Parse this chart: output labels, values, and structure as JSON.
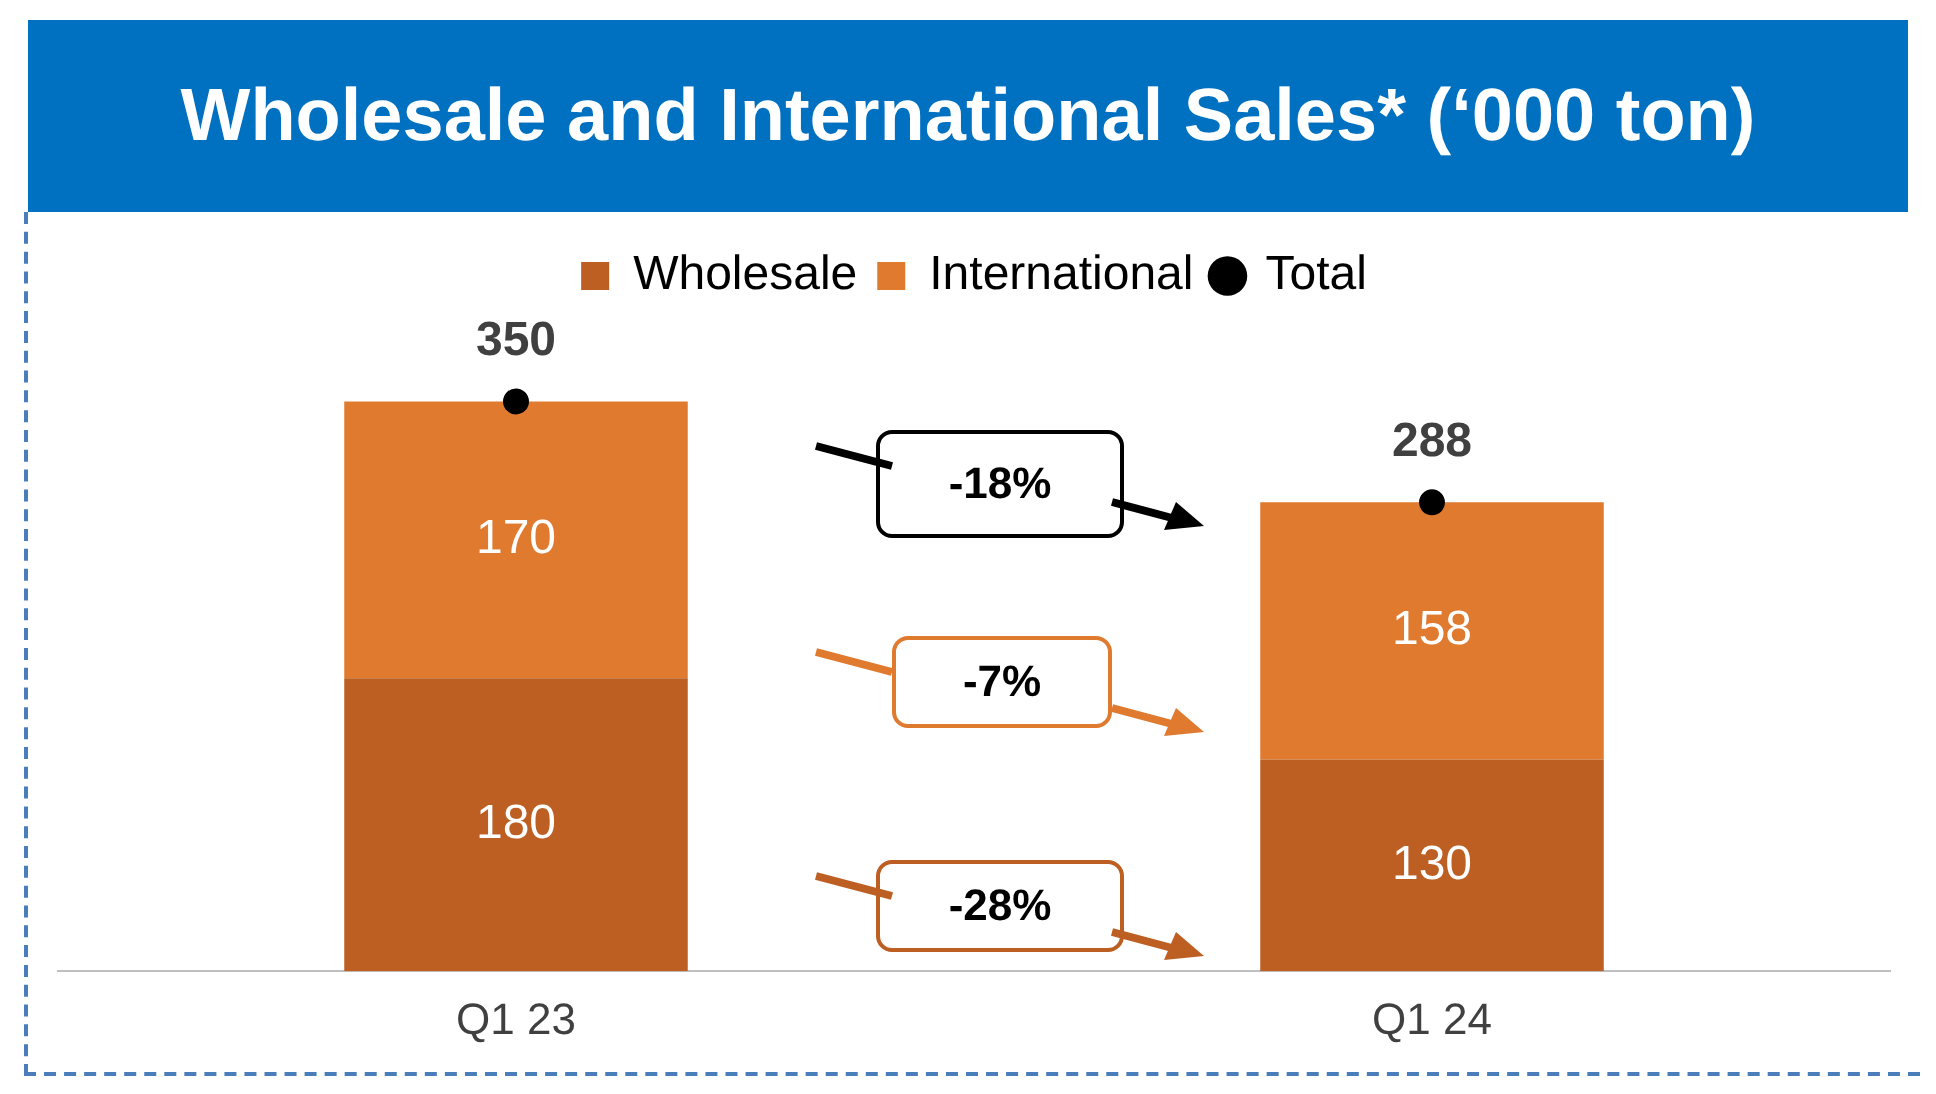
{
  "chart_data": {
    "type": "bar",
    "title": "Wholesale and International Sales* (‘000 ton)",
    "categories": [
      "Q1 23",
      "Q1 24"
    ],
    "stacked": true,
    "data_labels": true,
    "legend": "top",
    "grid": false,
    "series": [
      {
        "name": "Wholesale",
        "color": "#bd5f22",
        "values": [
          180,
          130
        ]
      },
      {
        "name": "International",
        "color": "#e07a2e",
        "values": [
          170,
          158
        ]
      },
      {
        "name": "Total",
        "type": "scatter",
        "marker": "circle",
        "color": "#000000",
        "x": [
          "Q1 23",
          "Q1 24"
        ],
        "values": [
          350,
          288
        ]
      }
    ],
    "annotations": [
      "-18%",
      "-7%",
      "-28%"
    ]
  }
}
